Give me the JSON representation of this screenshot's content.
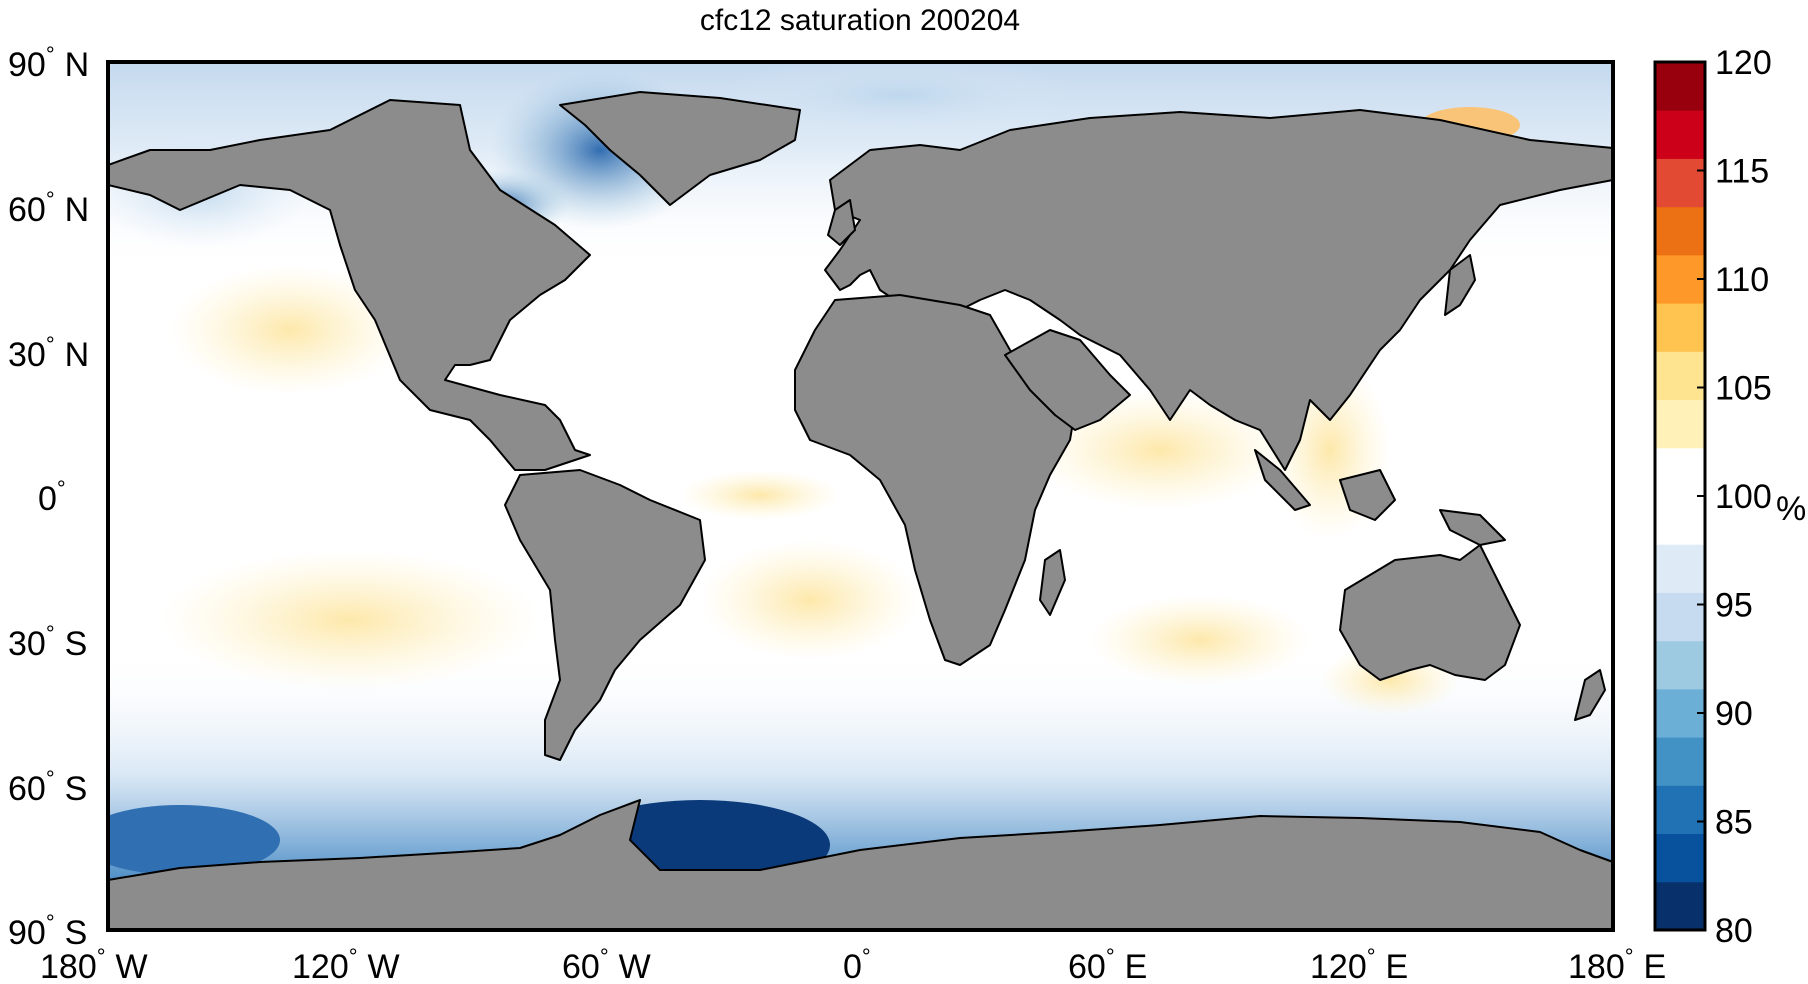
{
  "title": "cfc12 saturation 200204",
  "map": {
    "land_color": "#8c8c8c",
    "coast_color": "#000000",
    "lat_ticks": [
      {
        "deg": "90",
        "hemi": "N"
      },
      {
        "deg": "60",
        "hemi": "N"
      },
      {
        "deg": "30",
        "hemi": "N"
      },
      {
        "deg": "0",
        "hemi": ""
      },
      {
        "deg": "30",
        "hemi": "S"
      },
      {
        "deg": "60",
        "hemi": "S"
      },
      {
        "deg": "90",
        "hemi": "S"
      }
    ],
    "lon_ticks": [
      {
        "deg": "180",
        "hemi": "W"
      },
      {
        "deg": "120",
        "hemi": "W"
      },
      {
        "deg": "60",
        "hemi": "W"
      },
      {
        "deg": "0",
        "hemi": ""
      },
      {
        "deg": "60",
        "hemi": "E"
      },
      {
        "deg": "120",
        "hemi": "E"
      },
      {
        "deg": "180",
        "hemi": "E"
      }
    ]
  },
  "colorbar": {
    "unit": "%",
    "min": 80,
    "max": 120,
    "tick_labels": [
      "120",
      "115",
      "110",
      "105",
      "100",
      "95",
      "90",
      "85",
      "80"
    ],
    "colors": [
      "#08306b",
      "#08519c",
      "#2171b5",
      "#4292c6",
      "#6baed6",
      "#9ecae1",
      "#c6dbef",
      "#deebf7",
      "#ffffff",
      "#ffffff",
      "#fff1b8",
      "#fee391",
      "#fec44f",
      "#fe9929",
      "#ec7014",
      "#e34a33",
      "#cc0018",
      "#99000d"
    ]
  }
}
